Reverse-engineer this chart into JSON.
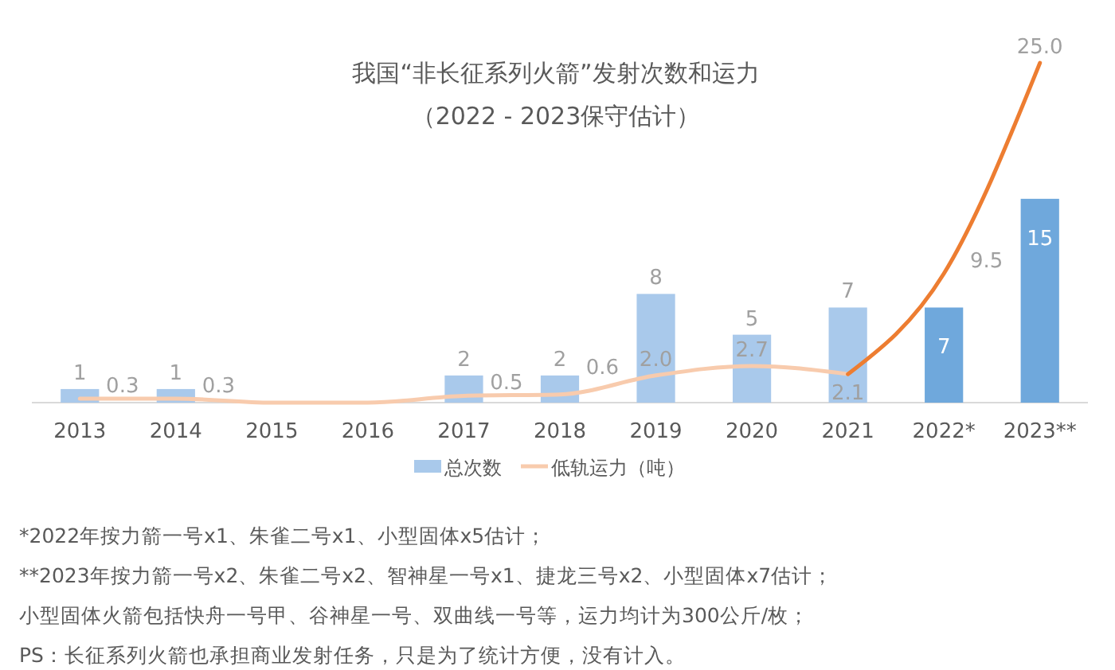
{
  "chart_data": {
    "type": "bar",
    "title": "我国“非长征系列火箭”发射次数和运力",
    "subtitle": "（2022 - 2023保守估计）",
    "categories": [
      "2013",
      "2014",
      "2015",
      "2016",
      "2017",
      "2018",
      "2019",
      "2020",
      "2021",
      "2022*",
      "2023**"
    ],
    "series": [
      {
        "name": "总次数",
        "color": "#a9c9eb",
        "colors": [
          "#a9c9eb",
          "#a9c9eb",
          null,
          null,
          "#a9c9eb",
          "#a9c9eb",
          "#a9c9eb",
          "#a9c9eb",
          "#a9c9eb",
          "#6fa8dc",
          "#6fa8dc"
        ],
        "values": [
          1,
          1,
          0,
          0,
          2,
          2,
          8,
          5,
          7,
          7,
          15
        ],
        "value_labels": [
          "1",
          "1",
          null,
          null,
          "2",
          "2",
          "8",
          "5",
          "7",
          "7",
          "15"
        ]
      },
      {
        "name": "低轨运力（吨）",
        "type": "line",
        "color": "#f8cbad",
        "values": [
          0.3,
          0.3,
          0,
          0,
          0.5,
          0.6,
          2.0,
          2.7,
          2.1,
          null,
          null
        ],
        "value_labels": [
          "0.3",
          "0.3",
          null,
          null,
          "0.5",
          "0.6",
          "2.0",
          "2.7",
          "2.1",
          null,
          null
        ]
      },
      {
        "type": "line",
        "color": "#ed7d31",
        "values": [
          null,
          null,
          null,
          null,
          null,
          null,
          null,
          null,
          2.1,
          9.5,
          25.0
        ],
        "value_labels": [
          null,
          null,
          null,
          null,
          null,
          null,
          null,
          null,
          null,
          "9.5",
          "25.0"
        ]
      }
    ],
    "tick_labels": "x",
    "legend": "bottom",
    "marker": "none",
    "annotations": [
      "*2022年按力箭一号x1、朱雀二号x1、小型固体x5估计；",
      "**2023年按力箭一号x2、朱雀二号x2、智神星一号x1、捷龙三号x2、小型固体x7估计；",
      "小型固体火箭包括快舟一号甲、谷神星一号、双曲线一号等，运力均计为300公斤/枚；",
      "PS：长征系列火箭也承担商业发射任务，只是为了统计方便，没有计入。"
    ]
  }
}
